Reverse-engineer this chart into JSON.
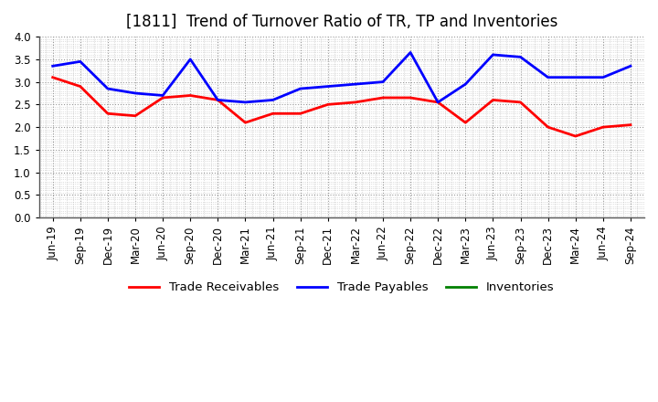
{
  "title": "[1811]  Trend of Turnover Ratio of TR, TP and Inventories",
  "x_labels": [
    "Jun-19",
    "Sep-19",
    "Dec-19",
    "Mar-20",
    "Jun-20",
    "Sep-20",
    "Dec-20",
    "Mar-21",
    "Jun-21",
    "Sep-21",
    "Dec-21",
    "Mar-22",
    "Jun-22",
    "Sep-22",
    "Dec-22",
    "Mar-23",
    "Jun-23",
    "Sep-23",
    "Dec-23",
    "Mar-24",
    "Jun-24",
    "Sep-24"
  ],
  "trade_receivables": [
    3.1,
    2.9,
    2.3,
    2.25,
    2.65,
    2.7,
    2.6,
    2.1,
    2.3,
    2.3,
    2.5,
    2.55,
    2.65,
    2.65,
    2.55,
    2.1,
    2.6,
    2.55,
    2.0,
    1.8,
    2.0,
    2.05
  ],
  "trade_payables": [
    3.35,
    3.45,
    2.85,
    2.75,
    2.7,
    3.5,
    2.6,
    2.55,
    2.6,
    2.85,
    2.9,
    2.95,
    3.0,
    3.65,
    2.55,
    2.95,
    3.6,
    3.55,
    3.1,
    3.1,
    3.1,
    3.35
  ],
  "inventories": [
    null,
    null,
    null,
    null,
    null,
    null,
    null,
    null,
    null,
    null,
    null,
    null,
    null,
    null,
    null,
    null,
    null,
    null,
    null,
    null,
    null,
    null
  ],
  "tr_color": "#FF0000",
  "tp_color": "#0000FF",
  "inv_color": "#008000",
  "background_color": "#FFFFFF",
  "grid_color": "#999999",
  "ylim": [
    0.0,
    4.0
  ],
  "yticks": [
    0.0,
    0.5,
    1.0,
    1.5,
    2.0,
    2.5,
    3.0,
    3.5,
    4.0
  ],
  "legend_labels": [
    "Trade Receivables",
    "Trade Payables",
    "Inventories"
  ],
  "title_fontsize": 12,
  "axis_fontsize": 8.5,
  "legend_fontsize": 9.5,
  "linewidth": 2.0
}
